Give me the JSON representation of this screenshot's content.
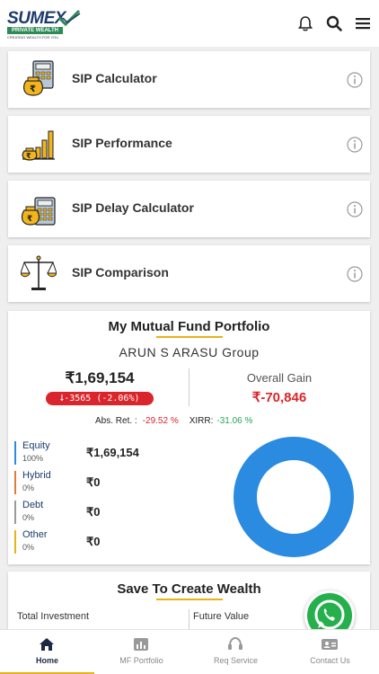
{
  "header": {
    "logo_word": "SUMEX",
    "logo_band": "PRIVATE WEALTH",
    "logo_tagline": "CREATING WEALTH FOR YOU",
    "icons": [
      "bell-icon",
      "search-icon",
      "menu-icon"
    ]
  },
  "tools": [
    {
      "label": "SIP Calculator",
      "icon": "calculator-moneybag-icon"
    },
    {
      "label": "SIP Performance",
      "icon": "bar-growth-icon"
    },
    {
      "label": "SIP Delay Calculator",
      "icon": "calculator-clock-icon"
    },
    {
      "label": "SIP Comparison",
      "icon": "scales-icon"
    }
  ],
  "portfolio": {
    "title": "My Mutual Fund Portfolio",
    "group": "ARUN S ARASU Group",
    "current_value": "₹1,69,154",
    "change": "⭣-3565 (-2.06%)",
    "gain_label": "Overall Gain",
    "gain_value": "₹-70,846",
    "abs_ret_label": "Abs. Ret. :",
    "abs_ret_value": "-29.52 %",
    "xirr_label": "XIRR:",
    "xirr_value": "-31.06 %",
    "allocation": [
      {
        "name": "Equity",
        "pct": "100%",
        "amount": "₹1,69,154",
        "color": "#2a8be0"
      },
      {
        "name": "Hybrid",
        "pct": "0%",
        "amount": "₹0",
        "color": "#e07c3a"
      },
      {
        "name": "Debt",
        "pct": "0%",
        "amount": "₹0",
        "color": "#9a9a9a"
      },
      {
        "name": "Other",
        "pct": "0%",
        "amount": "₹0",
        "color": "#e8b21b"
      }
    ],
    "donut_share_equity": 1.0
  },
  "wealth": {
    "title": "Save To Create Wealth",
    "left_label": "Total Investment",
    "right_label": "Future Value"
  },
  "nav": [
    {
      "label": "Home",
      "icon": "home-icon",
      "active": true
    },
    {
      "label": "MF Portfolio",
      "icon": "chart-icon",
      "active": false
    },
    {
      "label": "Req Service",
      "icon": "headset-icon",
      "active": false
    },
    {
      "label": "Contact Us",
      "icon": "contact-card-icon",
      "active": false
    }
  ],
  "colors": {
    "accent": "#e8b21b",
    "negative": "#d9252b",
    "positive": "#26a65b",
    "donut": "#2a8be0"
  }
}
